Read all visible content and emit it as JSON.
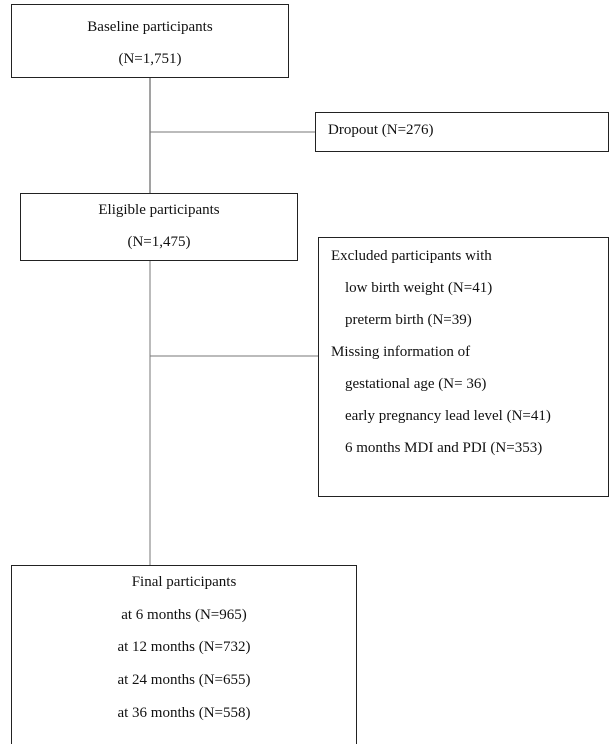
{
  "baseline": {
    "title": "Baseline participants",
    "count": "(N=1,751)"
  },
  "dropout": {
    "label": "Dropout (N=276)"
  },
  "eligible": {
    "title": "Eligible participants",
    "count": "(N=1,475)"
  },
  "excluded": {
    "heading": "Excluded participants with",
    "items": [
      "low birth weight (N=41)",
      "preterm birth (N=39)"
    ],
    "missing_heading": "Missing information of",
    "missing_items": [
      "gestational age (N= 36)",
      "early pregnancy lead level (N=41)",
      "6 months MDI and PDI (N=353)"
    ]
  },
  "final": {
    "title": "Final participants",
    "items": [
      "at 6 months (N=965)",
      "at 12 months (N=732)",
      "at 24 months (N=655)",
      "at 36 months (N=558)"
    ]
  }
}
